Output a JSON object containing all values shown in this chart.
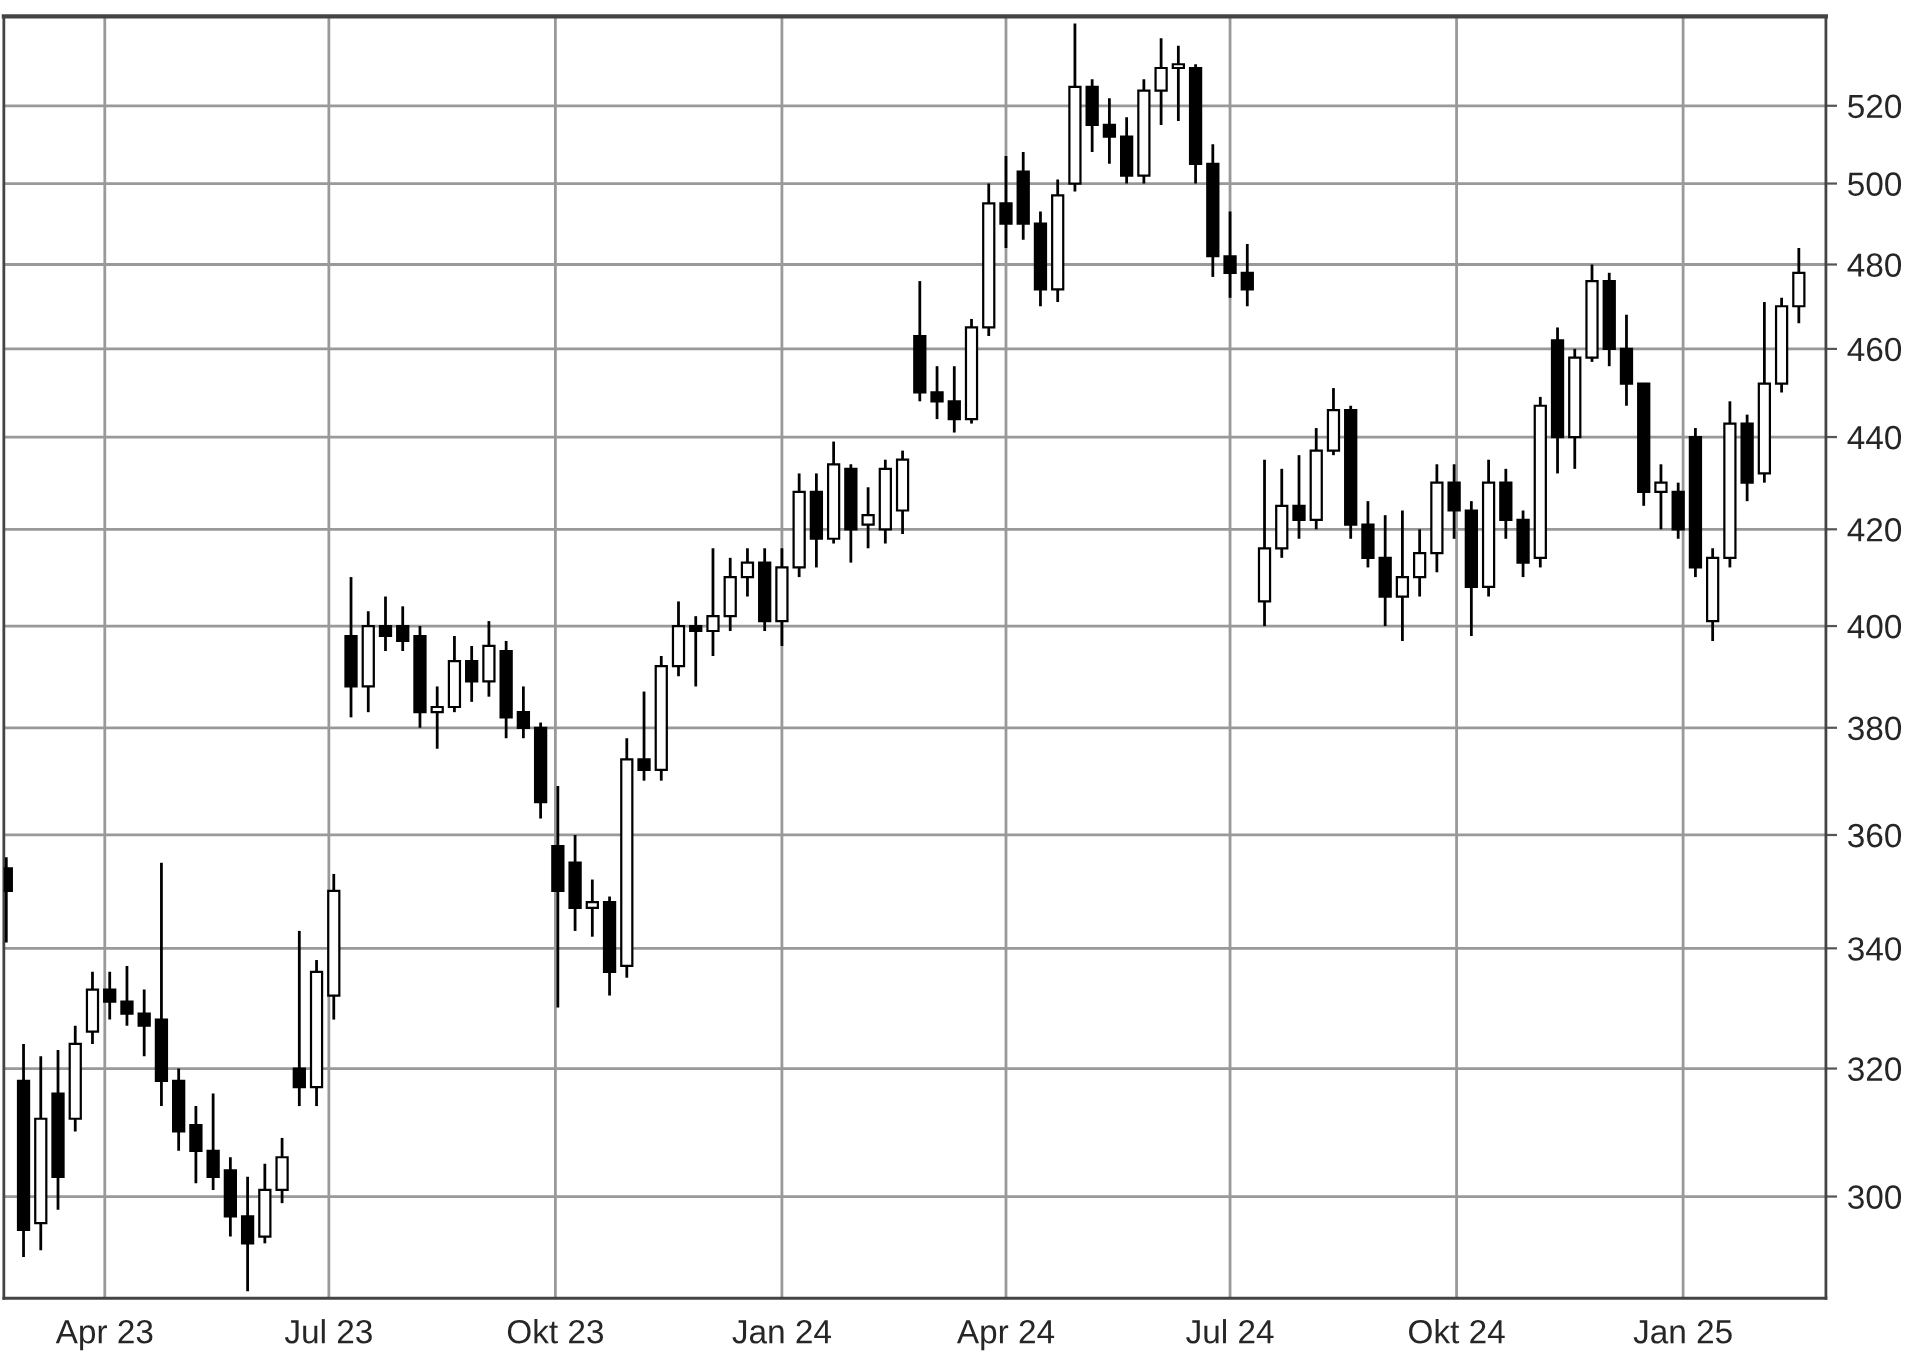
{
  "chart_data": {
    "type": "candlestick",
    "x": [
      "2023-02-20",
      "2023-02-27",
      "2023-03-06",
      "2023-03-13",
      "2023-03-20",
      "2023-03-27",
      "2023-04-03",
      "2023-04-10",
      "2023-04-17",
      "2023-04-24",
      "2023-05-01",
      "2023-05-08",
      "2023-05-15",
      "2023-05-22",
      "2023-05-29",
      "2023-06-05",
      "2023-06-12",
      "2023-06-19",
      "2023-06-26",
      "2023-07-03",
      "2023-07-10",
      "2023-07-17",
      "2023-07-24",
      "2023-07-31",
      "2023-08-07",
      "2023-08-14",
      "2023-08-21",
      "2023-08-28",
      "2023-09-04",
      "2023-09-11",
      "2023-09-18",
      "2023-09-25",
      "2023-10-02",
      "2023-10-09",
      "2023-10-16",
      "2023-10-23",
      "2023-10-30",
      "2023-11-06",
      "2023-11-13",
      "2023-11-20",
      "2023-11-27",
      "2023-12-04",
      "2023-12-11",
      "2023-12-18",
      "2023-12-25",
      "2024-01-01",
      "2024-01-08",
      "2024-01-15",
      "2024-01-22",
      "2024-01-29",
      "2024-02-05",
      "2024-02-12",
      "2024-02-19",
      "2024-02-26",
      "2024-03-04",
      "2024-03-11",
      "2024-03-18",
      "2024-03-25",
      "2024-04-01",
      "2024-04-08",
      "2024-04-15",
      "2024-04-22",
      "2024-04-29",
      "2024-05-06",
      "2024-05-13",
      "2024-05-20",
      "2024-05-27",
      "2024-06-03",
      "2024-06-10",
      "2024-06-17",
      "2024-06-24",
      "2024-07-01",
      "2024-07-08",
      "2024-07-15",
      "2024-07-22",
      "2024-07-29",
      "2024-08-05",
      "2024-08-12",
      "2024-08-19",
      "2024-08-26",
      "2024-09-02",
      "2024-09-09",
      "2024-09-16",
      "2024-09-23",
      "2024-09-30",
      "2024-10-07",
      "2024-10-14",
      "2024-10-21",
      "2024-10-28",
      "2024-11-04",
      "2024-11-11",
      "2024-11-18",
      "2024-11-25",
      "2024-12-02",
      "2024-12-09",
      "2024-12-16",
      "2024-12-23",
      "2024-12-30",
      "2025-01-06",
      "2025-01-13",
      "2025-01-20",
      "2025-01-27",
      "2025-02-03",
      "2025-02-10",
      "2025-02-17"
    ],
    "ohlc": [
      [
        354,
        356,
        341,
        350
      ],
      [
        318,
        324,
        291,
        295
      ],
      [
        296,
        322,
        292,
        312
      ],
      [
        316,
        323,
        298,
        303
      ],
      [
        312,
        327,
        310,
        324
      ],
      [
        326,
        336,
        324,
        333
      ],
      [
        333,
        336,
        328,
        331
      ],
      [
        331,
        337,
        327,
        329
      ],
      [
        329,
        333,
        322,
        327
      ],
      [
        328,
        355,
        314,
        318
      ],
      [
        318,
        320,
        307,
        310
      ],
      [
        311,
        314,
        302,
        307
      ],
      [
        307,
        316,
        301,
        303
      ],
      [
        304,
        306,
        294,
        297
      ],
      [
        297,
        303,
        286,
        293
      ],
      [
        294,
        305,
        293,
        301
      ],
      [
        301,
        309,
        299,
        306
      ],
      [
        320,
        343,
        314,
        317
      ],
      [
        317,
        338,
        314,
        336
      ],
      [
        332,
        353,
        328,
        350
      ],
      [
        398,
        410,
        382,
        388
      ],
      [
        388,
        403,
        383,
        400
      ],
      [
        400,
        406,
        395,
        398
      ],
      [
        400,
        404,
        395,
        397
      ],
      [
        398,
        400,
        380,
        383
      ],
      [
        383,
        388,
        376,
        384
      ],
      [
        384,
        398,
        383,
        393
      ],
      [
        393,
        396,
        385,
        389
      ],
      [
        389,
        401,
        386,
        396
      ],
      [
        395,
        397,
        378,
        382
      ],
      [
        383,
        388,
        378,
        380
      ],
      [
        380,
        381,
        363,
        366
      ],
      [
        358,
        369,
        330,
        350
      ],
      [
        355,
        360,
        343,
        347
      ],
      [
        347,
        352,
        342,
        348
      ],
      [
        348,
        349,
        332,
        336
      ],
      [
        337,
        378,
        335,
        374
      ],
      [
        374,
        387,
        370,
        372
      ],
      [
        372,
        394,
        370,
        392
      ],
      [
        392,
        405,
        390,
        400
      ],
      [
        400,
        402,
        388,
        399
      ],
      [
        399,
        416,
        394,
        402
      ],
      [
        402,
        414,
        399,
        410
      ],
      [
        410,
        416,
        406,
        413
      ],
      [
        413,
        416,
        399,
        401
      ],
      [
        401,
        416,
        396,
        412
      ],
      [
        412,
        432,
        410,
        428
      ],
      [
        428,
        432,
        412,
        418
      ],
      [
        418,
        439,
        417,
        434
      ],
      [
        433,
        434,
        413,
        420
      ],
      [
        421,
        429,
        416,
        423
      ],
      [
        420,
        435,
        417,
        433
      ],
      [
        424,
        437,
        419,
        435
      ],
      [
        463,
        476,
        448,
        450
      ],
      [
        450,
        456,
        444,
        448
      ],
      [
        448,
        456,
        441,
        444
      ],
      [
        444,
        467,
        443,
        465
      ],
      [
        465,
        500,
        463,
        495
      ],
      [
        495,
        507,
        484,
        490
      ],
      [
        503,
        508,
        486,
        490
      ],
      [
        490,
        493,
        470,
        474
      ],
      [
        474,
        501,
        471,
        497
      ],
      [
        500,
        542,
        498,
        525
      ],
      [
        525,
        527,
        508,
        515
      ],
      [
        515,
        522,
        505,
        512
      ],
      [
        512,
        517,
        500,
        502
      ],
      [
        502,
        527,
        500,
        524
      ],
      [
        524,
        538,
        515,
        530
      ],
      [
        530,
        536,
        516,
        531
      ],
      [
        530,
        531,
        500,
        505
      ],
      [
        505,
        510,
        477,
        482
      ],
      [
        482,
        493,
        472,
        478
      ],
      [
        478,
        485,
        470,
        474
      ],
      [
        405,
        435,
        400,
        416
      ],
      [
        416,
        433,
        414,
        425
      ],
      [
        425,
        436,
        418,
        422
      ],
      [
        422,
        442,
        420,
        437
      ],
      [
        437,
        451,
        436,
        446
      ],
      [
        446,
        447,
        418,
        421
      ],
      [
        421,
        426,
        412,
        414
      ],
      [
        414,
        423,
        400,
        406
      ],
      [
        406,
        424,
        397,
        410
      ],
      [
        410,
        420,
        406,
        415
      ],
      [
        415,
        434,
        411,
        430
      ],
      [
        430,
        434,
        418,
        424
      ],
      [
        424,
        426,
        398,
        408
      ],
      [
        408,
        435,
        406,
        430
      ],
      [
        430,
        433,
        418,
        422
      ],
      [
        422,
        424,
        410,
        413
      ],
      [
        414,
        449,
        412,
        447
      ],
      [
        462,
        465,
        432,
        440
      ],
      [
        440,
        460,
        433,
        458
      ],
      [
        458,
        480,
        457,
        476
      ],
      [
        476,
        478,
        456,
        460
      ],
      [
        460,
        468,
        447,
        452
      ],
      [
        452,
        452,
        425,
        428
      ],
      [
        428,
        434,
        420,
        430
      ],
      [
        428,
        430,
        418,
        420
      ],
      [
        440,
        442,
        410,
        412
      ],
      [
        401,
        416,
        397,
        414
      ],
      [
        414,
        448,
        412,
        443
      ],
      [
        443,
        445,
        426,
        430
      ],
      [
        432,
        471,
        430,
        452
      ],
      [
        452,
        472,
        450,
        470
      ],
      [
        470,
        484,
        466,
        478
      ]
    ],
    "xlim": [
      "2023-02-19",
      "2025-02-28"
    ],
    "xticks": [
      {
        "value": "2023-04-01",
        "label": "Apr 23"
      },
      {
        "value": "2023-07-01",
        "label": "Jul 23"
      },
      {
        "value": "2023-10-01",
        "label": "Okt 23"
      },
      {
        "value": "2024-01-01",
        "label": "Jan 24"
      },
      {
        "value": "2024-04-01",
        "label": "Apr 24"
      },
      {
        "value": "2024-07-01",
        "label": "Jul 24"
      },
      {
        "value": "2024-10-01",
        "label": "Okt 24"
      },
      {
        "value": "2025-01-01",
        "label": "Jan 25"
      }
    ],
    "log": true,
    "ylim": [
      285,
      544
    ],
    "yticks": [
      300,
      320,
      340,
      360,
      380,
      400,
      420,
      440,
      460,
      480,
      500,
      520
    ],
    "grid": true
  }
}
